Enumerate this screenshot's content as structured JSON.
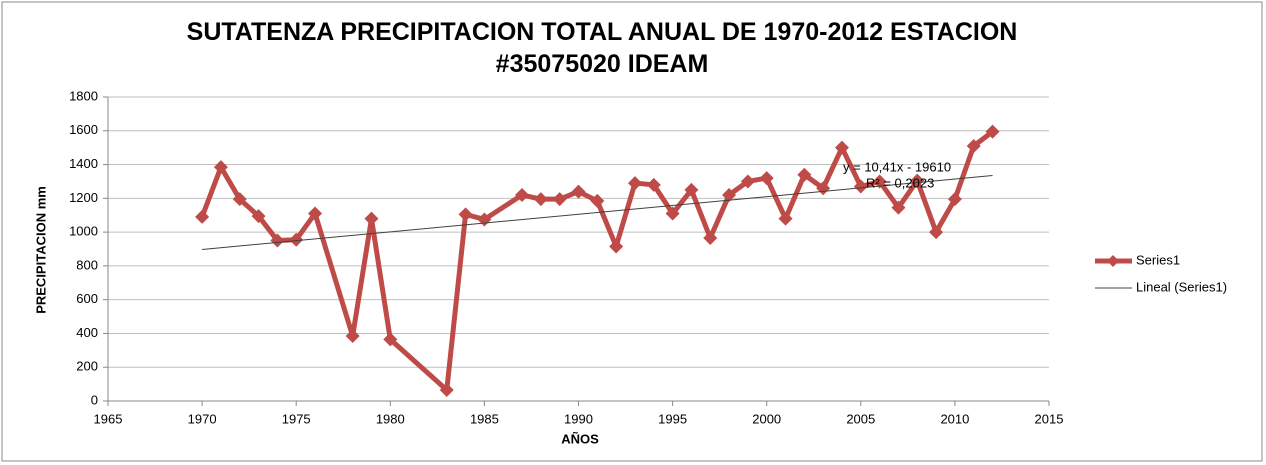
{
  "chart_data": {
    "type": "line",
    "title": "SUTATENZA PRECIPITACION TOTAL ANUAL DE 1970-2012 ESTACION #35075020 IDEAM",
    "xlabel": "AÑOS",
    "ylabel": "PRECIPITACION mm",
    "xlim": [
      1965,
      2015
    ],
    "xticks": [
      1965,
      1970,
      1975,
      1980,
      1985,
      1990,
      1995,
      2000,
      2005,
      2010,
      2015
    ],
    "ylim": [
      0,
      1800
    ],
    "yticks": [
      0,
      200,
      400,
      600,
      800,
      1000,
      1200,
      1400,
      1600,
      1800
    ],
    "grid": true,
    "legend": "right",
    "series": [
      {
        "name": "Series1",
        "color": "#be4b48",
        "markers": true,
        "x": [
          1970,
          1971,
          1972,
          1973,
          1974,
          1975,
          1976,
          1978,
          1979,
          1980,
          1983,
          1984,
          1985,
          1987,
          1988,
          1989,
          1990,
          1991,
          1992,
          1993,
          1994,
          1995,
          1996,
          1997,
          1998,
          1999,
          2000,
          2001,
          2002,
          2003,
          2004,
          2005,
          2006,
          2007,
          2008,
          2009,
          2010,
          2011,
          2012
        ],
        "values": [
          1090,
          1385,
          1195,
          1095,
          950,
          955,
          1110,
          385,
          1080,
          365,
          65,
          1105,
          1075,
          1220,
          1195,
          1195,
          1240,
          1185,
          915,
          1290,
          1280,
          1110,
          1250,
          965,
          1220,
          1300,
          1320,
          1080,
          1340,
          1260,
          1500,
          1270,
          1300,
          1145,
          1305,
          1000,
          1195,
          1510,
          1595
        ]
      },
      {
        "name": "Lineal (Series1)",
        "color": "#404040",
        "markers": false,
        "x": [
          1970,
          2012
        ],
        "values": [
          897,
          1335
        ]
      }
    ],
    "annotations": [
      "y = 10,41x - 19610",
      "R² = 0,2023"
    ]
  }
}
